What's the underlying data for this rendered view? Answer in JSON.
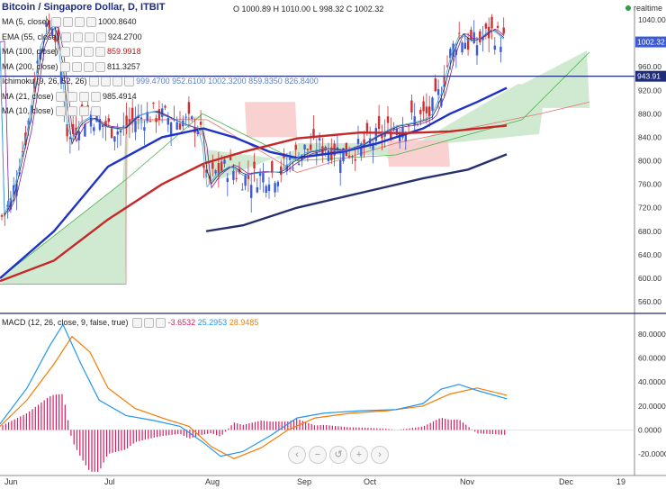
{
  "title": "Bitcoin / Singapore Dollar, D, ITBIT",
  "ohlc": {
    "o": "1000.89",
    "h": "1010.00",
    "l": "998.32",
    "c": "1002.32",
    "text": "O 1000.89 H 1010.00 L 998.32 C 1002.32"
  },
  "realtime": "realtime",
  "indicators": [
    {
      "label": "MA (5, close)",
      "value": "1000.8640",
      "color": "#222222"
    },
    {
      "label": "EMA (55, close)",
      "value": "924.2700",
      "color": "#222222"
    },
    {
      "label": "MA (100, close)",
      "value": "859.9918",
      "color": "#b71c1c"
    },
    {
      "label": "MA (200, close)",
      "value": "811.3257",
      "color": "#222222"
    },
    {
      "label": "Ichimoku (9, 26, 52, 26)",
      "value": "999.4700  952.6100  1002.3200  859.8350  826.8400",
      "color": "#5b7fd0"
    },
    {
      "label": "MA (21, close)",
      "value": "985.4914",
      "color": "#222222"
    },
    {
      "label": "MA (10, close)",
      "value": "",
      "color": "#222222"
    }
  ],
  "macd": {
    "label": "MACD (12, 26, close, 9, false, true)",
    "v1": "-3.6532",
    "v2": "25.2953",
    "v3": "28.9485"
  },
  "price_axis": {
    "ticks": [
      "1040.00",
      "1000.00",
      "960.00",
      "920.00",
      "880.00",
      "840.00",
      "800.00",
      "760.00",
      "720.00",
      "680.00",
      "640.00",
      "600.00",
      "560.00"
    ],
    "last": "1002.32",
    "level": "943.91"
  },
  "macd_axis": {
    "ticks": [
      "80.0000",
      "60.0000",
      "40.0000",
      "20.0000",
      "0.0000",
      "-20.0000"
    ]
  },
  "time_axis": [
    "Jun",
    "Jul",
    "Aug",
    "Sep",
    "Oct",
    "Nov",
    "Dec",
    "19"
  ],
  "colors": {
    "up": "#3b5bd6",
    "down": "#d32f2f",
    "ema55": "#1d32c8",
    "ma100": "#c62828",
    "ma200": "#26306e",
    "macd": "#2196f3",
    "signal": "#f57c00",
    "hist": "#d81b60",
    "cloudG": "#c8e6c9",
    "cloudR": "#f8c9c9"
  },
  "chart_data": {
    "type": "line",
    "title": "Bitcoin / Singapore Dollar, D, ITBIT",
    "x": [
      "Jun",
      "Jul",
      "Aug",
      "Sep",
      "Oct",
      "Nov"
    ],
    "series": [
      {
        "name": "Close",
        "values": [
          700,
          840,
          760,
          780,
          820,
          1002
        ]
      },
      {
        "name": "EMA (55, close)",
        "values": [
          620,
          800,
          830,
          805,
          835,
          924
        ]
      },
      {
        "name": "MA (100, close)",
        "values": [
          595,
          660,
          760,
          830,
          845,
          860
        ]
      },
      {
        "name": "MA (200, close)",
        "values": [
          null,
          null,
          680,
          730,
          765,
          811
        ]
      }
    ],
    "ylim": [
      540,
      1050
    ],
    "macd": {
      "x": [
        "Jun",
        "Jul",
        "Aug",
        "Sep",
        "Oct",
        "Nov"
      ],
      "macd": [
        25,
        10,
        -20,
        10,
        18,
        25
      ],
      "signal": [
        30,
        15,
        -15,
        5,
        15,
        29
      ],
      "ylim": [
        -30,
        90
      ]
    }
  }
}
